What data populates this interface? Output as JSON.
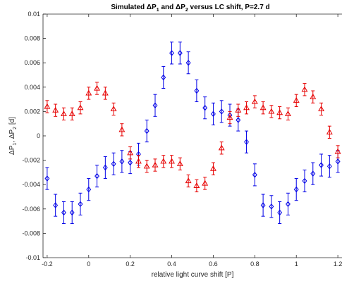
{
  "chart_data": {
    "type": "scatter",
    "title": "Simulated ΔP₁ and ΔP₂ versus LC shift, P=2.7 d",
    "title_parts": {
      "pre": "Simulated ",
      "d1": "ΔP",
      "s1": "1",
      "mid": " and ",
      "d2": "ΔP",
      "s2": "2",
      "post": " versus LC shift, P=2.7 d"
    },
    "xlabel": "relative light curve shift [P]",
    "ylabel": "ΔP₁, ΔP₂  [d]",
    "ylabel_parts": {
      "a": "ΔP",
      "s1": "1",
      "b": ", ΔP",
      "s2": "2",
      "c": "  [d]"
    },
    "xlim": [
      -0.22,
      1.22
    ],
    "ylim": [
      -0.01,
      0.01
    ],
    "x_ticks": [
      -0.2,
      0,
      0.2,
      0.4,
      0.6,
      0.8,
      1,
      1.2
    ],
    "x_tick_labels": [
      "-0.2",
      "0",
      "0.2",
      "0.4",
      "0.6",
      "0.8",
      "1",
      "1.2"
    ],
    "y_ticks": [
      -0.01,
      -0.008,
      -0.006,
      -0.004,
      -0.002,
      0,
      0.002,
      0.004,
      0.006,
      0.008,
      0.01
    ],
    "y_tick_labels": [
      "-0.01",
      "-0.008",
      "-0.006",
      "-0.004",
      "-0.002",
      "0",
      "0.002",
      "0.004",
      "0.006",
      "0.008",
      "0.01"
    ],
    "grid": false,
    "series": [
      {
        "marker": "diamond",
        "color": "#0000e6",
        "error": 0.0009,
        "x": [
          -0.2,
          -0.16,
          -0.12,
          -0.08,
          -0.04,
          0,
          0.04,
          0.08,
          0.12,
          0.16,
          0.2,
          0.24,
          0.28,
          0.32,
          0.36,
          0.4,
          0.44,
          0.48,
          0.52,
          0.56,
          0.6,
          0.64,
          0.68,
          0.72,
          0.76,
          0.8,
          0.84,
          0.88,
          0.92,
          0.96,
          1,
          1.04,
          1.08,
          1.12,
          1.16,
          1.2
        ],
        "y": [
          -0.0035,
          -0.0057,
          -0.0063,
          -0.0063,
          -0.0056,
          -0.0044,
          -0.0033,
          -0.0026,
          -0.0023,
          -0.0021,
          -0.0022,
          -0.0015,
          0.0004,
          0.0025,
          0.0048,
          0.0068,
          0.0068,
          0.006,
          0.0037,
          0.0023,
          0.0018,
          0.002,
          0.0017,
          0.0013,
          -0.0005,
          -0.0032,
          -0.0057,
          -0.0058,
          -0.0063,
          -0.0056,
          -0.0044,
          -0.0037,
          -0.0031,
          -0.0024,
          -0.0025,
          -0.0021
        ]
      },
      {
        "marker": "triangle",
        "color": "#e60000",
        "error": 0.0005,
        "x": [
          -0.2,
          -0.16,
          -0.12,
          -0.08,
          -0.04,
          0,
          0.04,
          0.08,
          0.12,
          0.16,
          0.2,
          0.24,
          0.28,
          0.32,
          0.36,
          0.4,
          0.44,
          0.48,
          0.52,
          0.56,
          0.6,
          0.64,
          0.68,
          0.72,
          0.76,
          0.8,
          0.84,
          0.88,
          0.92,
          0.96,
          1,
          1.04,
          1.08,
          1.12,
          1.16,
          1.2
        ],
        "y": [
          0.0024,
          0.0021,
          0.0018,
          0.0018,
          0.0023,
          0.0035,
          0.0039,
          0.0035,
          0.0022,
          0.0005,
          -0.0014,
          -0.0021,
          -0.0025,
          -0.0024,
          -0.0021,
          -0.0021,
          -0.0023,
          -0.0037,
          -0.0041,
          -0.0039,
          -0.0027,
          -0.001,
          0.0015,
          0.0021,
          0.0023,
          0.0028,
          0.0023,
          0.002,
          0.0019,
          0.0018,
          0.0029,
          0.0038,
          0.0032,
          0.0022,
          0.0003,
          -0.0013
        ]
      }
    ]
  }
}
